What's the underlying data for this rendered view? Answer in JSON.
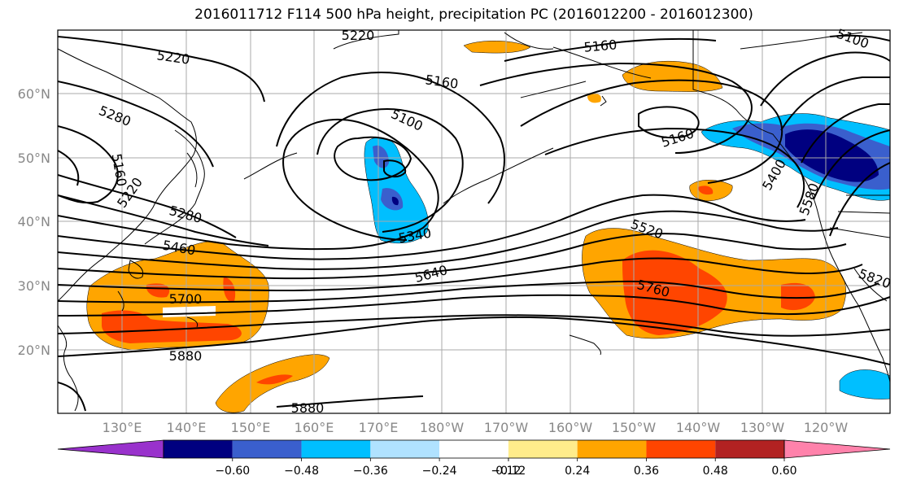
{
  "title": "2016011712 F114 500 hPa height, precipitation PC (2016012200 - 2016012300)",
  "map": {
    "lat_labels": [
      "60°N",
      "50°N",
      "40°N",
      "30°N",
      "20°N"
    ],
    "lon_labels": [
      "130°E",
      "140°E",
      "150°E",
      "160°E",
      "170°E",
      "180°W",
      "170°W",
      "160°W",
      "150°W",
      "140°W",
      "130°W",
      "120°W"
    ],
    "contour_labels": [
      "5220",
      "5160",
      "5280",
      "5160",
      "5100",
      "5160",
      "5160",
      "5220",
      "5280",
      "5460",
      "5340",
      "5520",
      "5640",
      "5700",
      "5760",
      "5880",
      "5880",
      "5400",
      "5580",
      "5820",
      "5100",
      "5220"
    ]
  },
  "colorbar": {
    "ticks": [
      "−0.60",
      "−0.48",
      "−0.36",
      "−0.24",
      "−0.12",
      "0.12",
      "0.24",
      "0.36",
      "0.48",
      "0.60"
    ],
    "colors": [
      "#9932cc",
      "#000080",
      "#3a5fcd",
      "#00bfff",
      "#b0e2ff",
      "#ffffff",
      "#ffec8b",
      "#ffa500",
      "#ff4500",
      "#b22222",
      "#ff82ab"
    ]
  }
}
